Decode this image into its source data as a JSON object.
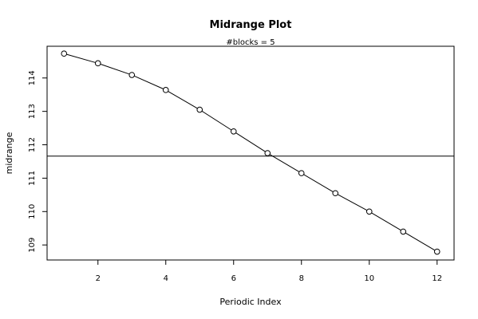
{
  "chart_data": {
    "type": "line",
    "title": "Midrange Plot",
    "subtitle": "#blocks =  5",
    "xlabel": "Periodic Index",
    "ylabel": "midrange",
    "x": [
      1,
      2,
      3,
      4,
      5,
      6,
      7,
      8,
      9,
      10,
      11,
      12
    ],
    "series": [
      {
        "values": [
          114.73,
          114.44,
          114.09,
          113.64,
          113.05,
          112.4,
          111.75,
          111.15,
          110.55,
          110.0,
          109.4,
          108.8
        ]
      }
    ],
    "reference_line": 111.66,
    "xlim": [
      0.5,
      12.5
    ],
    "ylim": [
      108.55,
      114.95
    ],
    "xticks": [
      2,
      4,
      6,
      8,
      10,
      12
    ],
    "yticks": [
      109,
      110,
      111,
      112,
      113,
      114
    ],
    "marker": "open-circle",
    "grid": false,
    "legend": false
  }
}
